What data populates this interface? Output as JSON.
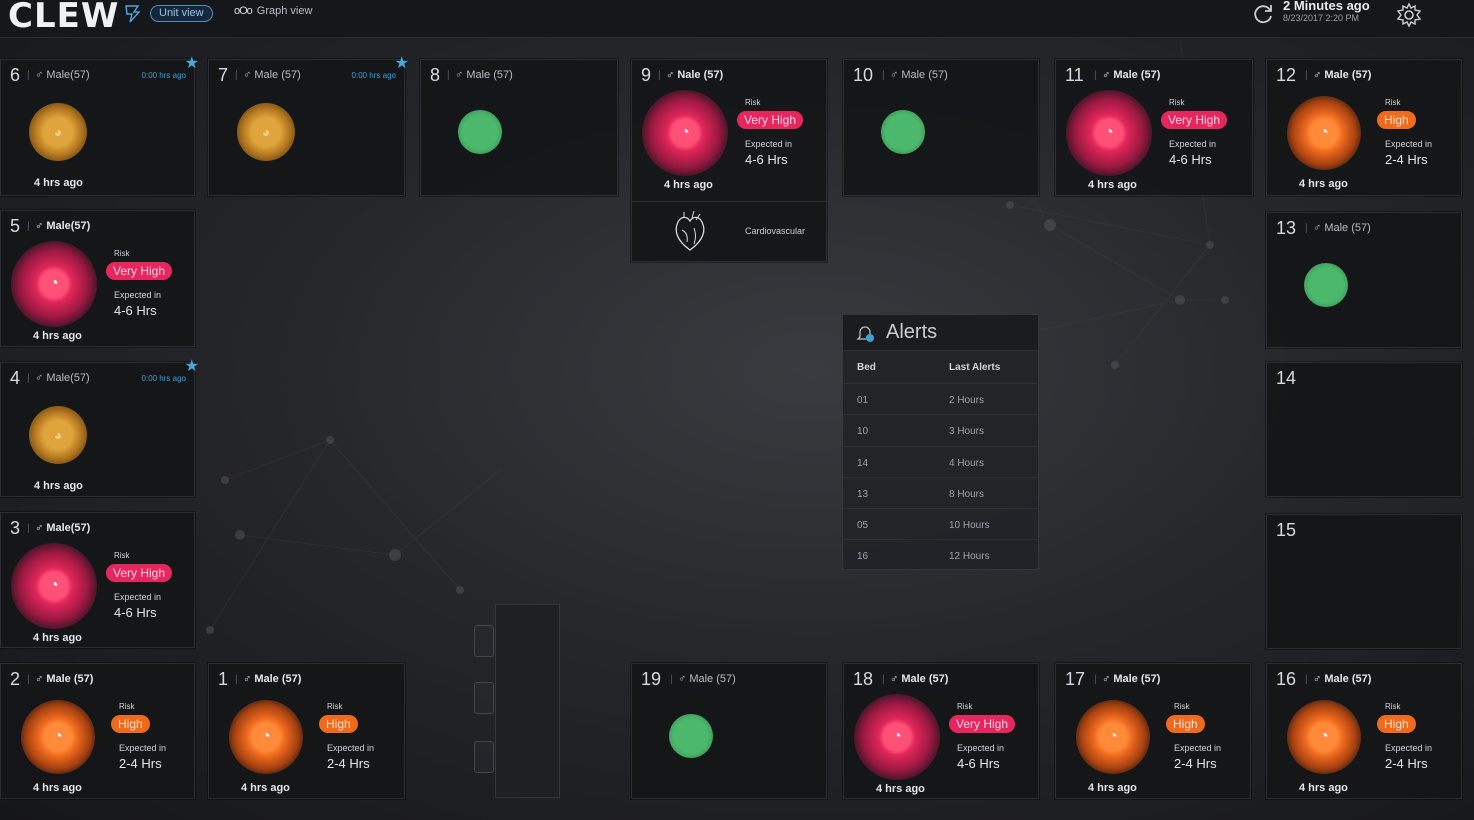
{
  "header": {
    "logo": "CLEW",
    "unit_view_label": "Unit view",
    "graph_view_label": "Graph view",
    "updated_main": "2 Minutes ago",
    "updated_sub": "8/23/2017 2:20 PM"
  },
  "beds": [
    {
      "id": "6",
      "demo": "Male(57)",
      "status": "watch",
      "ago": "4 hrs ago",
      "tiny_time": "0:00 hrs ago",
      "starred": true
    },
    {
      "id": "7",
      "demo": "Male (57)",
      "status": "watch",
      "ago": "",
      "tiny_time": "0:00 hrs ago",
      "starred": true
    },
    {
      "id": "8",
      "demo": "Male (57)",
      "status": "ok"
    },
    {
      "id": "9",
      "demo": "Nale (57)",
      "status": "very-high",
      "risk_label": "Risk",
      "risk": "Very High",
      "expected_label": "Expected in",
      "expected": "4-6 Hrs",
      "ago": "4 hrs ago",
      "system": "Cardiovascular"
    },
    {
      "id": "10",
      "demo": "Male (57)",
      "status": "ok"
    },
    {
      "id": "11",
      "demo": "Male (57)",
      "status": "very-high",
      "risk_label": "Risk",
      "risk": "Very High",
      "expected_label": "Expected in",
      "expected": "4-6 Hrs",
      "ago": "4 hrs ago"
    },
    {
      "id": "12",
      "demo": "Male (57)",
      "status": "high",
      "risk_label": "Risk",
      "risk": "High",
      "expected_label": "Expected in",
      "expected": "2-4 Hrs",
      "ago": "4 hrs ago"
    },
    {
      "id": "5",
      "demo": "Male(57)",
      "status": "very-high",
      "risk_label": "Risk",
      "risk": "Very High",
      "expected_label": "Expected in",
      "expected": "4-6 Hrs",
      "ago": "4 hrs ago"
    },
    {
      "id": "13",
      "demo": "Male (57)",
      "status": "ok"
    },
    {
      "id": "4",
      "demo": "Male(57)",
      "status": "watch",
      "ago": "4 hrs ago",
      "tiny_time": "0:00 hrs ago",
      "starred": true
    },
    {
      "id": "14"
    },
    {
      "id": "3",
      "demo": "Male(57)",
      "status": "very-high",
      "risk_label": "Risk",
      "risk": "Very High",
      "expected_label": "Expected in",
      "expected": "4-6 Hrs",
      "ago": "4 hrs ago"
    },
    {
      "id": "15"
    },
    {
      "id": "2",
      "demo": "Male (57)",
      "status": "high",
      "risk_label": "Risk",
      "risk": "High",
      "expected_label": "Expected in",
      "expected": "2-4 Hrs",
      "ago": "4 hrs ago"
    },
    {
      "id": "1",
      "demo": "Male (57)",
      "status": "high",
      "risk_label": "Risk",
      "risk": "High",
      "expected_label": "Expected in",
      "expected": "2-4 Hrs",
      "ago": "4 hrs ago"
    },
    {
      "id": "19",
      "demo": "Male (57)",
      "status": "ok"
    },
    {
      "id": "18",
      "demo": "Male (57)",
      "status": "very-high",
      "risk_label": "Risk",
      "risk": "Very High",
      "expected_label": "Expected in",
      "expected": "4-6 Hrs",
      "ago": "4 hrs ago"
    },
    {
      "id": "17",
      "demo": "Male (57)",
      "status": "high",
      "risk_label": "Risk",
      "risk": "High",
      "expected_label": "Expected in",
      "expected": "2-4 Hrs",
      "ago": "4 hrs ago"
    },
    {
      "id": "16",
      "demo": "Male (57)",
      "status": "high",
      "risk_label": "Risk",
      "risk": "High",
      "expected_label": "Expected in",
      "expected": "2-4 Hrs",
      "ago": "4 hrs ago"
    }
  ],
  "alerts": {
    "title": "Alerts",
    "col_bed": "Bed",
    "col_last": "Last Alerts",
    "rows": [
      {
        "bed": "01",
        "last": "2 Hours"
      },
      {
        "bed": "10",
        "last": "3 Hours"
      },
      {
        "bed": "14",
        "last": "4 Hours"
      },
      {
        "bed": "13",
        "last": "8 Hours"
      },
      {
        "bed": "05",
        "last": "10 Hours"
      },
      {
        "bed": "16",
        "last": "12 Hours"
      }
    ]
  },
  "colors": {
    "very_high": "#e6275f",
    "high": "#f06a1e",
    "ok": "#4cb86c",
    "accent": "#3c9fd6"
  },
  "icons": {
    "male": "male-icon",
    "star": "star-icon",
    "refresh": "refresh-icon",
    "settings": "gear-icon",
    "bell": "bell-icon",
    "heart": "heart-icon"
  }
}
